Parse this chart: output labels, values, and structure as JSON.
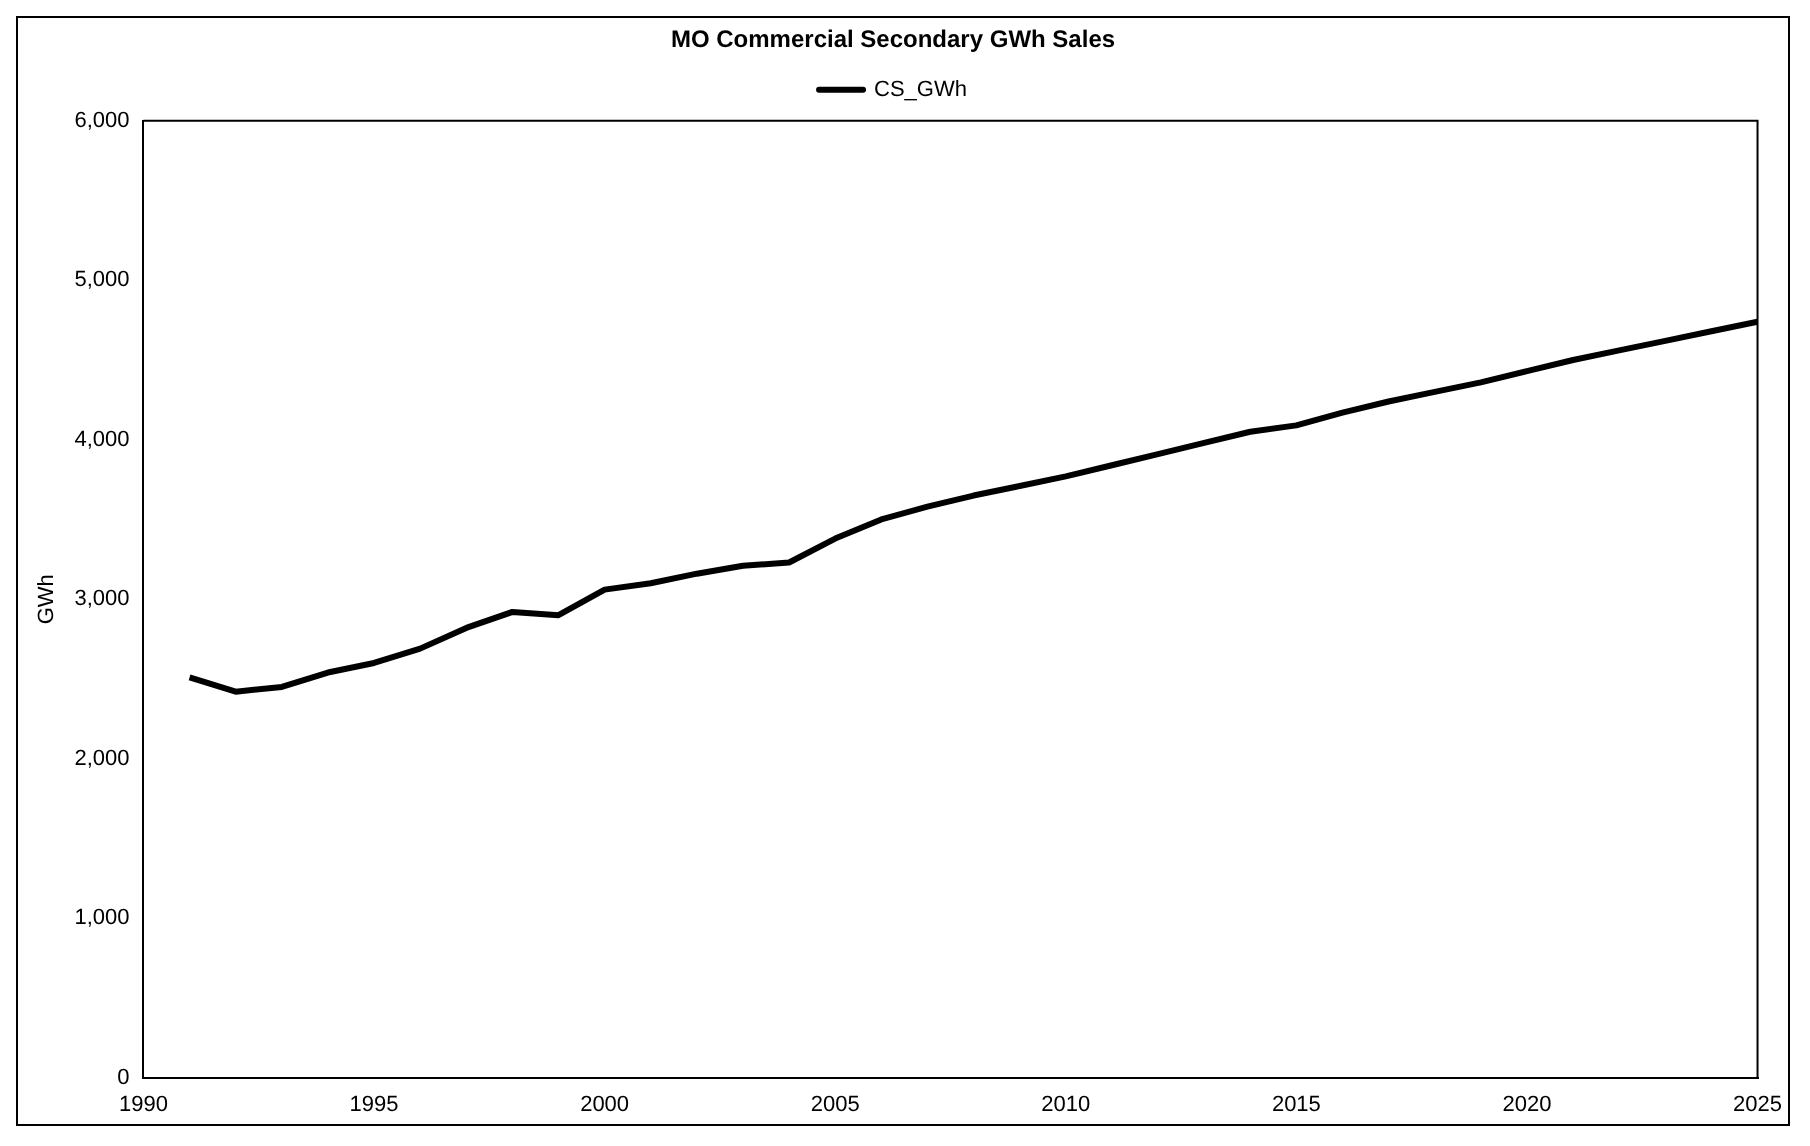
{
  "chart_data": {
    "type": "line",
    "title": "MO Commercial Secondary GWh Sales",
    "ylabel": "GWh",
    "x": [
      1991,
      1992,
      1993,
      1994,
      1995,
      1996,
      1997,
      1998,
      1999,
      2000,
      2001,
      2002,
      2003,
      2004,
      2005,
      2006,
      2007,
      2008,
      2009,
      2010,
      2011,
      2012,
      2013,
      2014,
      2015,
      2016,
      2017,
      2018,
      2019,
      2020,
      2021,
      2022,
      2023,
      2024,
      2025
    ],
    "series": [
      {
        "name": "CS_GWh",
        "color": "#000000",
        "values": [
          2510,
          2420,
          2450,
          2540,
          2600,
          2690,
          2820,
          2920,
          2900,
          3060,
          3100,
          3160,
          3210,
          3230,
          3380,
          3500,
          3580,
          3650,
          3710,
          3770,
          3840,
          3910,
          3980,
          4050,
          4090,
          4170,
          4240,
          4300,
          4360,
          4430,
          4500,
          4560,
          4620,
          4680,
          4740
        ]
      }
    ],
    "xlim": [
      1990,
      2025
    ],
    "xticks": [
      1990,
      1995,
      2000,
      2005,
      2010,
      2015,
      2020,
      2025
    ],
    "ylim": [
      0,
      6000
    ],
    "yticks": [
      {
        "value": 0,
        "label": "0"
      },
      {
        "value": 1000,
        "label": "1,000"
      },
      {
        "value": 2000,
        "label": "2,000"
      },
      {
        "value": 3000,
        "label": "3,000"
      },
      {
        "value": 4000,
        "label": "4,000"
      },
      {
        "value": 5000,
        "label": "5,000"
      },
      {
        "value": 6000,
        "label": "6,000"
      }
    ],
    "grid": false,
    "legend": "top",
    "marker": "none",
    "line_style": "solid"
  }
}
